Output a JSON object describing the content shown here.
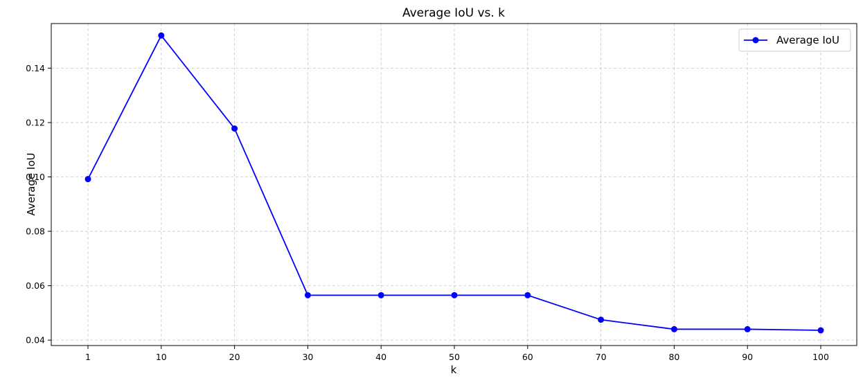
{
  "chart_data": {
    "type": "line",
    "title": "Average IoU vs. k",
    "xlabel": "k",
    "ylabel": "Average IoU",
    "categories": [
      "1",
      "10",
      "20",
      "30",
      "40",
      "50",
      "60",
      "70",
      "80",
      "90",
      "100"
    ],
    "series": [
      {
        "name": "Average IoU",
        "color": "#0000ff",
        "marker": "circle",
        "values": [
          0.0992,
          0.152,
          0.1178,
          0.0565,
          0.0565,
          0.0565,
          0.0565,
          0.0475,
          0.044,
          0.044,
          0.0436
        ]
      }
    ],
    "yticks": [
      0.04,
      0.06,
      0.08,
      0.1,
      0.12,
      0.14
    ],
    "ytick_labels": [
      "0.04",
      "0.06",
      "0.08",
      "0.10",
      "0.12",
      "0.14"
    ],
    "ylim": [
      0.038,
      0.1564
    ],
    "grid": true,
    "grid_style": "dashed",
    "legend_position": "top-right"
  }
}
